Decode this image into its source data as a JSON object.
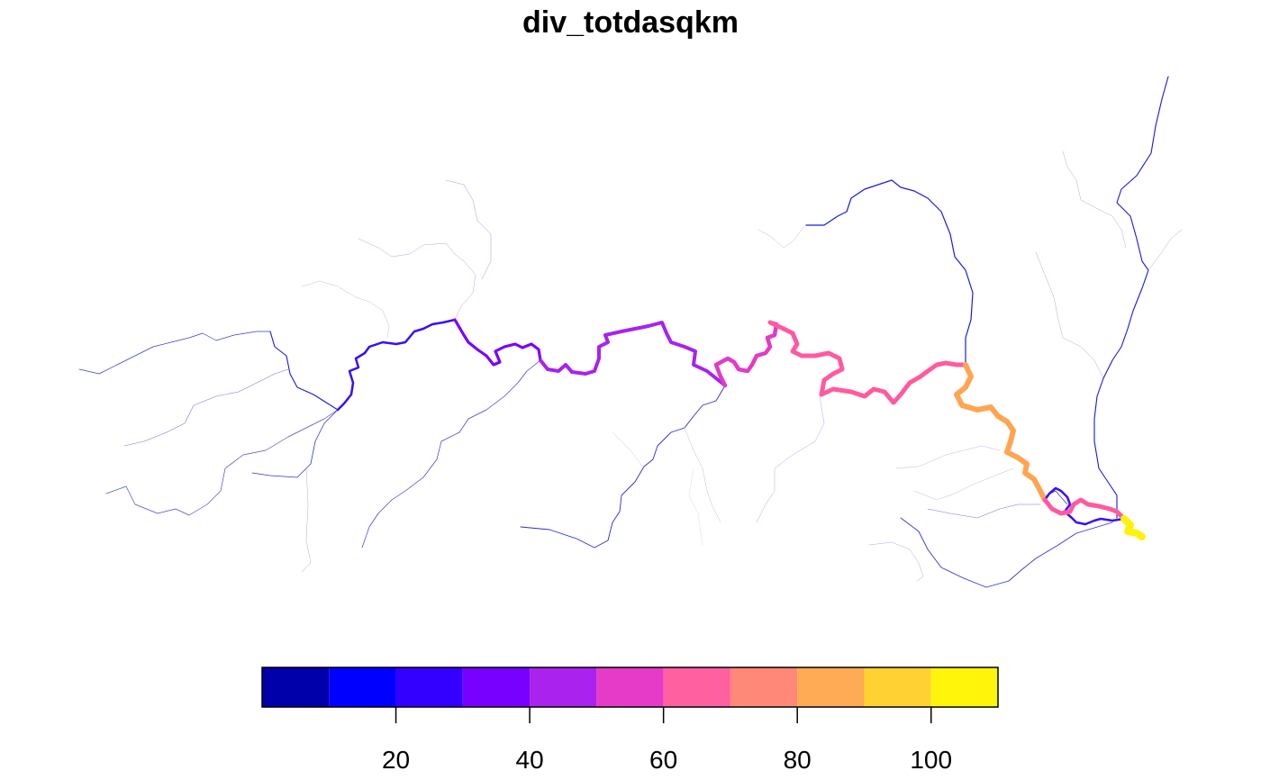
{
  "title": "div_totdasqkm",
  "legend": {
    "placement": "bottom",
    "range": [
      0,
      110
    ],
    "breaks": [
      0,
      10,
      20,
      30,
      40,
      50,
      60,
      70,
      80,
      90,
      100,
      110
    ],
    "colors": [
      "#0000AA",
      "#0000FF",
      "#3300FF",
      "#7700FF",
      "#AA22EE",
      "#E63BC8",
      "#FF60A0",
      "#FF8878",
      "#FFAA55",
      "#FFD133",
      "#FFF50A"
    ],
    "ticks": [
      {
        "value": 20,
        "label": "20"
      },
      {
        "value": 40,
        "label": "40"
      },
      {
        "value": 60,
        "label": "60"
      },
      {
        "value": 80,
        "label": "80"
      },
      {
        "value": 100,
        "label": "100"
      }
    ]
  }
}
